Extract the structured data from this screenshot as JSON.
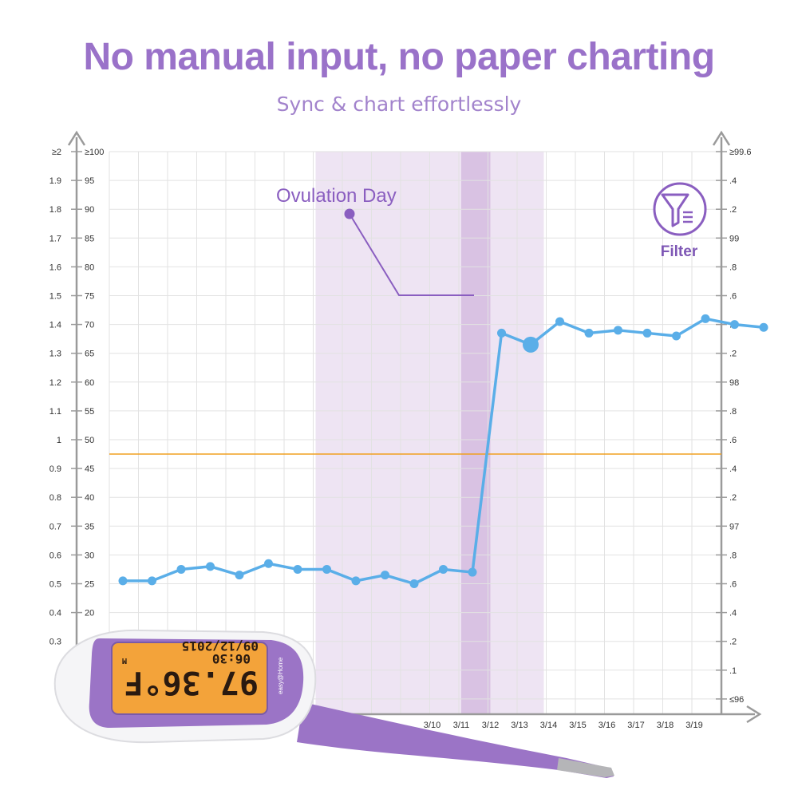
{
  "header": {
    "title": "No manual input, no paper charting",
    "subtitle": "Sync & chart effortlessly"
  },
  "annotations": {
    "ovulation_label": "Ovulation Day",
    "filter_label": "Filter"
  },
  "colors": {
    "brand_purple": "#9a72c9",
    "temp_line": "#5aaee8",
    "coverline": "#f0a020",
    "fertile_window": "#eee4f3",
    "ovulation_band": "#d9c2e3",
    "grid": "#e2e2e2"
  },
  "thermometer": {
    "lcd_main": "97.36°F",
    "lcd_time": "06:30",
    "lcd_date": "09/12/2015",
    "lcd_mem": "M",
    "brand": "easy@Home"
  },
  "chart_data": {
    "type": "line",
    "title": "",
    "xlabel": "",
    "ylabel": "",
    "y_left_outer_ticks": [
      "≥2",
      "1.9",
      "1.8",
      "1.7",
      "1.6",
      "1.5",
      "1.4",
      "1.3",
      "1.2",
      "1.1",
      "1",
      "0.9",
      "0.8",
      "0.7",
      "0.6",
      "0.5",
      "0.4",
      "0.3"
    ],
    "y_left_inner_ticks": [
      "≥100",
      "95",
      "90",
      "85",
      "80",
      "75",
      "70",
      "65",
      "60",
      "55",
      "50",
      "45",
      "40",
      "35",
      "30",
      "25",
      "20"
    ],
    "y_right_ticks": [
      "≥99.6",
      ".4",
      ".2",
      "99",
      ".8",
      ".6",
      ".4",
      ".2",
      "98",
      ".8",
      ".6",
      ".4",
      ".2",
      "97",
      ".8",
      ".6",
      ".4",
      ".2",
      ".1",
      "≤96"
    ],
    "x_tick_labels": [
      "3/10",
      "3/11",
      "3/12",
      "3/13",
      "3/14",
      "3/15",
      "3/16",
      "3/17",
      "3/18",
      "3/19"
    ],
    "ylim_left_outer": [
      0.3,
      2
    ],
    "grid": true,
    "fertile_window": {
      "start_day": 8,
      "end_day": 15
    },
    "ovulation_day": 13,
    "coverline_value": 0.95,
    "series": [
      {
        "x": [
          1,
          2,
          3,
          4,
          5,
          6,
          7,
          8,
          9,
          10,
          11,
          12,
          13,
          14,
          15,
          16,
          17,
          18,
          19,
          20,
          21,
          22,
          23
        ],
        "values": [
          0.51,
          0.51,
          0.55,
          0.56,
          0.53,
          0.57,
          0.55,
          0.55,
          0.51,
          0.53,
          0.5,
          0.55,
          0.54,
          1.37,
          1.33,
          1.41,
          1.37,
          1.38,
          1.37,
          1.36,
          1.42,
          1.4,
          1.39
        ],
        "highlight_x": 15
      }
    ]
  }
}
